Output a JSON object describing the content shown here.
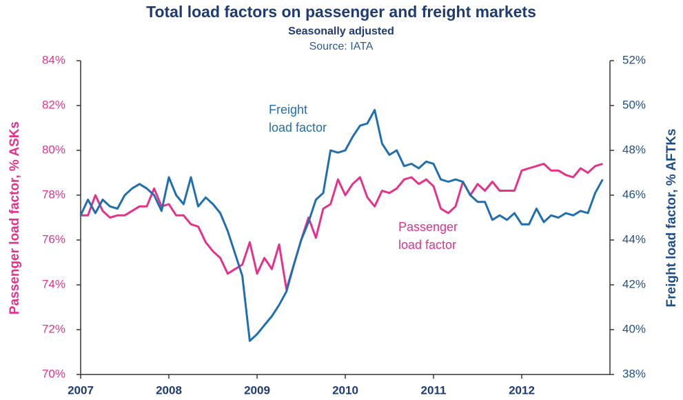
{
  "chart_data": {
    "type": "line",
    "title": "Total load factors on passenger and freight markets",
    "subtitle": "Seasonally adjusted",
    "source": "Source: IATA",
    "ylabel": "Passenger load factor, % ASKs",
    "y2label": "Freight load factor, % AFTKs",
    "x": [
      2007,
      2007.083,
      2007.167,
      2007.25,
      2007.333,
      2007.417,
      2007.5,
      2007.583,
      2007.667,
      2007.75,
      2007.833,
      2007.917,
      2008,
      2008.083,
      2008.167,
      2008.25,
      2008.333,
      2008.417,
      2008.5,
      2008.583,
      2008.667,
      2008.75,
      2008.833,
      2008.917,
      2009,
      2009.083,
      2009.167,
      2009.25,
      2009.333,
      2009.417,
      2009.5,
      2009.583,
      2009.667,
      2009.75,
      2009.833,
      2009.917,
      2010,
      2010.083,
      2010.167,
      2010.25,
      2010.333,
      2010.417,
      2010.5,
      2010.583,
      2010.667,
      2010.75,
      2010.833,
      2010.917,
      2011,
      2011.083,
      2011.167,
      2011.25,
      2011.333,
      2011.417,
      2011.5,
      2011.583,
      2011.667,
      2011.75,
      2011.833,
      2011.917,
      2012,
      2012.083,
      2012.167,
      2012.25,
      2012.333,
      2012.417,
      2012.5,
      2012.583,
      2012.667,
      2012.75,
      2012.833,
      2012.917
    ],
    "xlim": [
      2007,
      2013
    ],
    "xticks": [
      2007,
      2008,
      2009,
      2010,
      2011,
      2012
    ],
    "ylim": [
      70,
      84
    ],
    "yticks": [
      {
        "value": 70,
        "label": "70%"
      },
      {
        "value": 72,
        "label": "72%"
      },
      {
        "value": 74,
        "label": "74%"
      },
      {
        "value": 76,
        "label": "76%"
      },
      {
        "value": 78,
        "label": "78%"
      },
      {
        "value": 80,
        "label": "80%"
      },
      {
        "value": 82,
        "label": "82%"
      },
      {
        "value": 84,
        "label": "84%"
      }
    ],
    "y2lim": [
      38,
      52
    ],
    "y2ticks": [
      {
        "value": 38,
        "label": "38%"
      },
      {
        "value": 40,
        "label": "40%"
      },
      {
        "value": 42,
        "label": "42%"
      },
      {
        "value": 44,
        "label": "44%"
      },
      {
        "value": 46,
        "label": "46%"
      },
      {
        "value": 48,
        "label": "48%"
      },
      {
        "value": 50,
        "label": "50%"
      },
      {
        "value": 52,
        "label": "52%"
      }
    ],
    "series": [
      {
        "color": "#e6308a",
        "axis": "y",
        "values": [
          77.1,
          77.1,
          78.0,
          77.3,
          77.0,
          77.1,
          77.1,
          77.3,
          77.5,
          77.5,
          78.3,
          77.5,
          77.6,
          77.1,
          77.1,
          76.7,
          76.6,
          75.9,
          75.5,
          75.2,
          74.5,
          74.7,
          74.9,
          75.9,
          74.5,
          75.2,
          74.7,
          75.8,
          73.8,
          74.9,
          76.0,
          77.0,
          76.1,
          77.4,
          77.6,
          78.7,
          78.0,
          78.5,
          78.8,
          77.9,
          77.5,
          78.2,
          78.1,
          78.3,
          78.7,
          78.8,
          78.5,
          78.7,
          78.4,
          77.4,
          77.2,
          77.5,
          78.6,
          78.0,
          78.5,
          78.2,
          78.6,
          78.2,
          78.2,
          78.2,
          79.1,
          79.2,
          79.3,
          79.4,
          79.1,
          79.1,
          78.9,
          78.8,
          79.2,
          79.0,
          79.3,
          79.4
        ]
      },
      {
        "color": "#1f6fb0",
        "axis": "y2",
        "values": [
          45.1,
          45.8,
          45.2,
          45.8,
          45.5,
          45.4,
          46.0,
          46.3,
          46.5,
          46.3,
          46.0,
          45.3,
          46.8,
          46.0,
          45.6,
          46.8,
          45.5,
          45.9,
          45.6,
          45.2,
          44.4,
          43.4,
          42.4,
          39.5,
          39.8,
          40.2,
          40.6,
          41.1,
          41.7,
          42.9,
          44.0,
          44.8,
          45.8,
          46.1,
          48.0,
          47.9,
          48.0,
          48.6,
          49.1,
          49.2,
          49.8,
          48.3,
          47.8,
          48.0,
          47.3,
          47.4,
          47.2,
          47.5,
          47.4,
          46.7,
          46.6,
          46.7,
          46.6,
          46.0,
          45.7,
          45.7,
          44.9,
          45.1,
          44.9,
          45.2,
          44.7,
          44.7,
          45.4,
          44.8,
          45.1,
          45.0,
          45.2,
          45.1,
          45.3,
          45.2,
          46.1,
          46.7
        ]
      }
    ],
    "annotations": [
      {
        "lines": [
          "Freight",
          "load factor"
        ],
        "color": "#1f6fb0"
      },
      {
        "lines": [
          "Passenger",
          "load factor"
        ],
        "color": "#e6308a"
      }
    ]
  }
}
